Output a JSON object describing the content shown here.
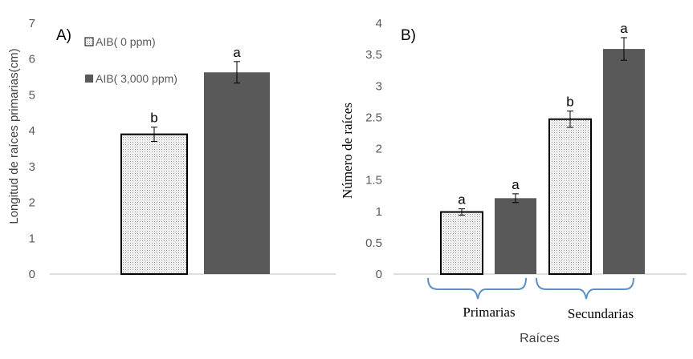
{
  "colors": {
    "control": "dotted-white",
    "treated": "#595959",
    "brace": "#5b8fc9",
    "error": "#000000"
  },
  "chart_data": [
    {
      "type": "bar",
      "panel_label": "A)",
      "ylabel": "Longitud de raíces primarias(cm)",
      "ylim": [
        0,
        7
      ],
      "yticks": [
        "0",
        "1",
        "2",
        "3",
        "4",
        "5",
        "6",
        "7"
      ],
      "legend_position": "top-left",
      "categories": [
        ""
      ],
      "series": [
        {
          "name": "AIB( 0 ppm)",
          "values": [
            3.9
          ],
          "errors": [
            0.2
          ],
          "labels": [
            "b"
          ]
        },
        {
          "name": "AIB( 3,000 ppm)",
          "values": [
            5.63
          ],
          "errors": [
            0.3
          ],
          "labels": [
            "a"
          ]
        }
      ]
    },
    {
      "type": "bar",
      "panel_label": "B)",
      "ylabel": "Número de raíces",
      "xlabel": "Raíces",
      "ylim": [
        0,
        4
      ],
      "yticks": [
        "0",
        "0.5",
        "1",
        "1.5",
        "2",
        "2.5",
        "3",
        "3.5",
        "4"
      ],
      "categories": [
        "Primarias",
        "Secundarias"
      ],
      "series": [
        {
          "values": [
            0.99,
            2.47
          ],
          "errors": [
            0.05,
            0.13
          ],
          "labels": [
            "a",
            "b"
          ]
        },
        {
          "values": [
            1.21,
            3.59
          ],
          "errors": [
            0.07,
            0.18
          ],
          "labels": [
            "a",
            "a"
          ]
        }
      ]
    }
  ]
}
